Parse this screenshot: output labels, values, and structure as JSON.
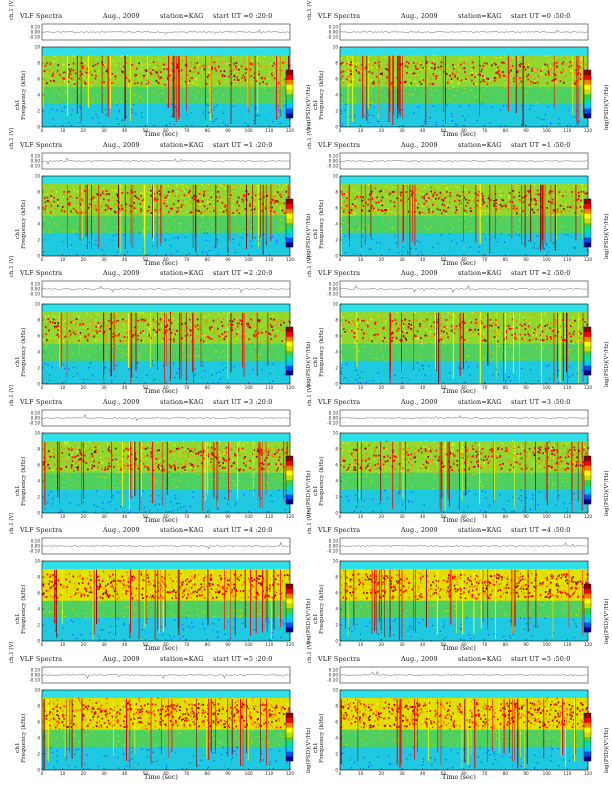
{
  "chart_data": {
    "type": "heatmap",
    "layout": {
      "rows": 6,
      "cols": 2
    },
    "panel_header": {
      "title": "VLF Spectra",
      "month": "Aug., 2009",
      "station": "station=KAG"
    },
    "channel_label": "ch.1 (V)",
    "channel_ticks": [
      "0.10",
      "0.00",
      "-0.10"
    ],
    "ylabel": "Frequency (kHz)",
    "ylabel_channel": "ch1",
    "xlabel": "Time (sec)",
    "xlim": [
      0,
      120
    ],
    "ylim": [
      0,
      10
    ],
    "x_ticks": [
      0,
      10,
      20,
      30,
      40,
      50,
      60,
      70,
      80,
      90,
      100,
      110,
      120
    ],
    "y_ticks": [
      0,
      2,
      4,
      6,
      8,
      10
    ],
    "colorbar_label": "log(PSD)(V²/Hz)",
    "panels": [
      {
        "start_label": "start UT =0 :20:0",
        "intensity": 0.4
      },
      {
        "start_label": "start UT =0 :50:0",
        "intensity": 0.42
      },
      {
        "start_label": "start UT =1 :20:0",
        "intensity": 0.45
      },
      {
        "start_label": "start UT =1 :50:0",
        "intensity": 0.46
      },
      {
        "start_label": "start UT =2 :20:0",
        "intensity": 0.43
      },
      {
        "start_label": "start UT =2 :50:0",
        "intensity": 0.4
      },
      {
        "start_label": "start UT =3 :20:0",
        "intensity": 0.55
      },
      {
        "start_label": "start UT =3 :50:0",
        "intensity": 0.55
      },
      {
        "start_label": "start UT =4 :20:0",
        "intensity": 0.66
      },
      {
        "start_label": "start UT =4 :50:0",
        "intensity": 0.68
      },
      {
        "start_label": "start UT =5 :20:0",
        "intensity": 0.78
      },
      {
        "start_label": "start UT =5 :50:0",
        "intensity": 0.8
      }
    ],
    "colormap": [
      "#00008b",
      "#0050ff",
      "#00c8ff",
      "#00e0a0",
      "#40d040",
      "#c8e000",
      "#ffff00",
      "#ff8000",
      "#ff0000",
      "#8b0000"
    ]
  }
}
